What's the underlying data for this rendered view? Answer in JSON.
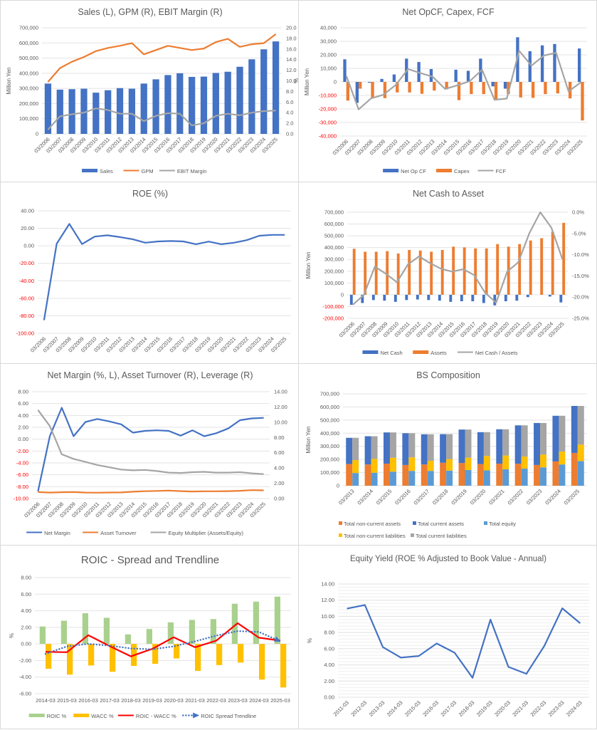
{
  "chart_data": [
    {
      "id": "sales",
      "type": "bar",
      "title": "Sales (L), GPM (R), EBIT Margin (R)",
      "ylabel": "Million Yen",
      "ylabel_right": "%",
      "ylim": [
        0,
        700000
      ],
      "ylim_right": [
        0,
        20
      ],
      "yticks": [
        0,
        100000,
        200000,
        300000,
        400000,
        500000,
        600000,
        700000
      ],
      "yticks_right": [
        0,
        2,
        4,
        6,
        8,
        10,
        12,
        14,
        16,
        18,
        20
      ],
      "categories": [
        "03/2006",
        "03/2007",
        "03/2008",
        "03/2009",
        "03/2010",
        "03/2011",
        "03/2012",
        "03/2013",
        "03/2014",
        "03/2015",
        "03/2016",
        "03/2017",
        "03/2018",
        "03/2019",
        "03/2020",
        "03/2021",
        "03/2022",
        "03/2023",
        "03/2024",
        "03/2025"
      ],
      "series": [
        {
          "name": "Sales",
          "kind": "bar",
          "axis": "left",
          "color": "#4472c4",
          "values": [
            332000,
            292000,
            295000,
            298000,
            272000,
            288000,
            302000,
            298000,
            332000,
            360000,
            388000,
            400000,
            376000,
            378000,
            402000,
            410000,
            443000,
            492000,
            558000,
            610000
          ]
        },
        {
          "name": "GPM",
          "kind": "line",
          "axis": "right",
          "color": "#ed7d31",
          "values": [
            9.8,
            12.4,
            13.6,
            14.5,
            15.6,
            16.2,
            16.6,
            17.1,
            15.0,
            15.8,
            16.6,
            16.2,
            15.8,
            16.1,
            17.3,
            17.9,
            16.4,
            16.9,
            17.1,
            18.8
          ]
        },
        {
          "name": "EBIT Margin",
          "kind": "line",
          "axis": "right",
          "color": "#a5a5a5",
          "values": [
            0.8,
            3.3,
            3.7,
            4.0,
            4.8,
            4.5,
            3.8,
            3.8,
            2.4,
            3.4,
            3.9,
            3.8,
            1.6,
            2.0,
            3.4,
            3.8,
            3.5,
            4.0,
            4.3,
            4.4
          ]
        }
      ]
    },
    {
      "id": "cashflow",
      "type": "bar",
      "title": "Net OpCF, Capex, FCF",
      "ylabel": "Million Yen",
      "ylim": [
        -40000,
        40000
      ],
      "yticks": [
        -40000,
        -30000,
        -20000,
        -10000,
        0,
        10000,
        20000,
        30000,
        40000
      ],
      "categories": [
        "03/2006",
        "03/2007",
        "03/2008",
        "03/2009",
        "03/2010",
        "03/2011",
        "03/2012",
        "03/2013",
        "03/2014",
        "03/2015",
        "03/2016",
        "03/2017",
        "03/2018",
        "03/2019",
        "03/2020",
        "03/2021",
        "03/2022",
        "03/2023",
        "03/2024",
        "03/2025"
      ],
      "series": [
        {
          "name": "Net Op CF",
          "kind": "bar",
          "color": "#4472c4",
          "values": [
            16700,
            -15500,
            -600,
            2200,
            5500,
            17200,
            14700,
            9500,
            0,
            9000,
            8200,
            17200,
            -3300,
            -5000,
            33000,
            22700,
            27000,
            28000,
            0,
            24700
          ]
        },
        {
          "name": "Capex",
          "kind": "bar",
          "color": "#ed7d31",
          "values": [
            -13800,
            -5000,
            -11800,
            -12000,
            -7800,
            -7800,
            -8800,
            -6400,
            -5500,
            -13500,
            -9000,
            -9000,
            -13200,
            -9000,
            -11500,
            -11800,
            -9000,
            -8500,
            -12200,
            -28500
          ]
        },
        {
          "name": "FCF",
          "kind": "line",
          "color": "#a5a5a5",
          "values": [
            4500,
            -20300,
            -12200,
            -9500,
            -2300,
            9500,
            6500,
            3800,
            -5200,
            -2500,
            500,
            9000,
            -13200,
            -12300,
            23000,
            12000,
            19500,
            21500,
            -7000,
            -300
          ]
        }
      ]
    },
    {
      "id": "roe",
      "type": "line",
      "title": "ROE (%)",
      "ylim": [
        -100,
        40
      ],
      "yticks": [
        -100,
        -80,
        -60,
        -40,
        -20,
        0,
        20,
        40
      ],
      "categories": [
        "03/2006",
        "03/2007",
        "03/2008",
        "03/2009",
        "03/2010",
        "03/2011",
        "03/2012",
        "03/2013",
        "03/2014",
        "03/2015",
        "03/2016",
        "03/2017",
        "03/2018",
        "03/2019",
        "03/2020",
        "03/2021",
        "03/2022",
        "03/2023",
        "03/2024",
        "03/2025"
      ],
      "series": [
        {
          "name": "ROE",
          "kind": "line",
          "color": "#4472c4",
          "values": [
            -85,
            2.5,
            25,
            2,
            10.5,
            12,
            10,
            7.5,
            3.5,
            5,
            5.5,
            5,
            1.8,
            4.8,
            1.8,
            3.5,
            6.5,
            11.5,
            12.5,
            12.5
          ]
        }
      ]
    },
    {
      "id": "netcash",
      "type": "bar",
      "title": "Net Cash to Asset",
      "ylabel": "Million Yen",
      "ylim": [
        -200000,
        700000
      ],
      "ylim_right": [
        -25,
        0
      ],
      "yticks": [
        -200000,
        -100000,
        0,
        100000,
        200000,
        300000,
        400000,
        500000,
        600000,
        700000
      ],
      "yticks_right": [
        -25,
        -20,
        -15,
        -10,
        -5,
        0
      ],
      "categories": [
        "03/2006",
        "03/2007",
        "03/2008",
        "03/2009",
        "03/2010",
        "03/2011",
        "03/2012",
        "03/2013",
        "03/2014",
        "03/2015",
        "03/2016",
        "03/2017",
        "03/2018",
        "03/2019",
        "03/2020",
        "03/2021",
        "03/2022",
        "03/2023",
        "03/2024",
        "03/2025"
      ],
      "series": [
        {
          "name": "Net Cash",
          "kind": "bar",
          "axis": "left",
          "color": "#4472c4",
          "values": [
            -85000,
            -70000,
            -45000,
            -50000,
            -60000,
            -45000,
            -40000,
            -45000,
            -50000,
            -60000,
            -55000,
            -55000,
            -70000,
            -90000,
            -55000,
            -50000,
            -20000,
            0,
            -15000,
            -65000
          ]
        },
        {
          "name": "Assets",
          "kind": "bar",
          "axis": "left",
          "color": "#ed7d31",
          "values": [
            390000,
            365000,
            365000,
            370000,
            350000,
            380000,
            375000,
            365000,
            380000,
            408000,
            402000,
            393000,
            393000,
            430000,
            408000,
            430000,
            460000,
            480000,
            535000,
            610000
          ]
        },
        {
          "name": "Net Cash / Assets",
          "kind": "line",
          "axis": "right",
          "color": "#a5a5a5",
          "values": [
            -21.8,
            -19.5,
            -12.8,
            -14.5,
            -16.5,
            -12.3,
            -10.4,
            -12.0,
            -13.3,
            -14.0,
            -13.4,
            -14.8,
            -19.0,
            -21.3,
            -14.0,
            -11.8,
            -5.0,
            0,
            -3.6,
            -11.0
          ]
        }
      ]
    },
    {
      "id": "dupont",
      "type": "line",
      "title": "Net Margin (%, L), Asset Turnover (R), Leverage (R)",
      "ylim": [
        -10,
        8
      ],
      "ylim_right": [
        0,
        14
      ],
      "yticks": [
        -10,
        -8,
        -6,
        -4,
        -2,
        0,
        2,
        4,
        6,
        8
      ],
      "yticks_right": [
        0,
        2,
        4,
        6,
        8,
        10,
        12,
        14
      ],
      "categories": [
        "03/2006",
        "03/2007",
        "03/2008",
        "03/2009",
        "03/2010",
        "03/2011",
        "03/2012",
        "03/2013",
        "03/2014",
        "03/2015",
        "03/2016",
        "03/2017",
        "03/2018",
        "03/2019",
        "03/2020",
        "03/2021",
        "03/2022",
        "03/2023",
        "03/2024",
        "03/2025"
      ],
      "series": [
        {
          "name": "Net Margin",
          "kind": "line",
          "axis": "left",
          "color": "#4472c4",
          "values": [
            -8.8,
            0.5,
            5.3,
            0.5,
            2.9,
            3.4,
            3.0,
            2.5,
            1.1,
            1.4,
            1.5,
            1.4,
            0.6,
            1.5,
            0.5,
            1.0,
            1.8,
            3.2,
            3.5,
            3.6
          ]
        },
        {
          "name": "Asset Turnover",
          "kind": "line",
          "axis": "right",
          "color": "#ed7d31",
          "values": [
            0.85,
            0.78,
            0.83,
            0.85,
            0.78,
            0.77,
            0.79,
            0.8,
            0.9,
            0.96,
            1.0,
            1.05,
            0.97,
            0.92,
            0.95,
            0.95,
            0.97,
            1.02,
            1.1,
            1.07
          ]
        },
        {
          "name": "Equity Multiplier (Assets/Equity)",
          "kind": "line",
          "axis": "right",
          "color": "#a5a5a5",
          "values": [
            11.6,
            9.5,
            5.8,
            5.2,
            4.8,
            4.4,
            4.1,
            3.8,
            3.7,
            3.75,
            3.6,
            3.4,
            3.35,
            3.45,
            3.5,
            3.4,
            3.4,
            3.45,
            3.3,
            3.2
          ]
        }
      ]
    },
    {
      "id": "bs",
      "type": "bar",
      "title": "BS Composition",
      "ylabel": "Million Yen",
      "ylim": [
        0,
        700000
      ],
      "yticks": [
        0,
        100000,
        200000,
        300000,
        400000,
        500000,
        600000,
        700000
      ],
      "categories": [
        "03/2013",
        "03/2014",
        "03/2015",
        "03/2016",
        "03/2017",
        "03/2018",
        "03/2019",
        "03/2020",
        "03/2021",
        "03/2022",
        "03/2023",
        "03/2024",
        "03/2025"
      ],
      "stacks": [
        {
          "stack": "assets",
          "series": [
            {
              "name": "Total non-current assets",
              "color": "#ed7d31",
              "values": [
                165000,
                162000,
                168000,
                158000,
                162000,
                175000,
                173000,
                165000,
                168000,
                168000,
                158000,
                185000,
                250000
              ]
            },
            {
              "name": "Total current assets",
              "color": "#4472c4",
              "values": [
                200000,
                215000,
                238000,
                242000,
                230000,
                218000,
                255000,
                243000,
                262000,
                292000,
                320000,
                348000,
                358000
              ]
            }
          ]
        },
        {
          "stack": "liabilities_equity",
          "series": [
            {
              "name": "Total equity",
              "color": "#5b9bd5",
              "values": [
                97000,
                99000,
                107000,
                113000,
                113000,
                115000,
                120000,
                117000,
                125000,
                130000,
                140000,
                162000,
                188000
              ]
            },
            {
              "name": "Total non-current liabilities",
              "color": "#ffc000",
              "values": [
                98000,
                105000,
                106000,
                103000,
                77000,
                88000,
                93000,
                110000,
                105000,
                92000,
                97000,
                98000,
                125000
              ]
            },
            {
              "name": "Total current liabilities",
              "color": "#a5a5a5",
              "values": [
                170000,
                173000,
                193000,
                184000,
                202000,
                190000,
                215000,
                181000,
                200000,
                238000,
                241000,
                273000,
                295000
              ]
            }
          ]
        }
      ],
      "legend": [
        "Total non-current assets",
        "Total current assets",
        "Total equity",
        "Total non-current liabilities",
        "Total current liabilities"
      ]
    },
    {
      "id": "roic",
      "type": "bar",
      "title": "ROIC - Spread and Trendline",
      "ylabel": "%",
      "ylim": [
        -6,
        8
      ],
      "yticks": [
        -6,
        -4,
        -2,
        0,
        2,
        4,
        6,
        8
      ],
      "categories": [
        "2014-03",
        "2015-03",
        "2016-03",
        "2017-03",
        "2018-03",
        "2019-03",
        "2020-03",
        "2021-03",
        "2022-03",
        "2023-03",
        "2024-03",
        "2025-03"
      ],
      "series": [
        {
          "name": "ROIC %",
          "kind": "bar",
          "color": "#a9d18e",
          "values": [
            2.1,
            2.8,
            3.7,
            3.15,
            1.15,
            1.8,
            2.6,
            2.9,
            3.0,
            4.85,
            5.1,
            5.7
          ]
        },
        {
          "name": "WACC %",
          "kind": "bar",
          "color": "#ffc000",
          "values": [
            -3.0,
            -3.7,
            -2.6,
            -3.35,
            -2.65,
            -2.4,
            -1.75,
            -3.25,
            -2.55,
            -2.25,
            -4.3,
            -5.25
          ]
        },
        {
          "name": "ROIC - WACC %",
          "kind": "line",
          "color": "#ff0000",
          "values": [
            -0.95,
            -1.0,
            1.05,
            -0.25,
            -1.5,
            -0.6,
            0.8,
            -0.4,
            0.4,
            2.5,
            0.75,
            0.4
          ]
        },
        {
          "name": "ROIC Spread Trendline",
          "kind": "trend",
          "color": "#4472c4",
          "values": [
            -1.2,
            -0.3,
            0.0,
            -0.2,
            -0.55,
            -0.65,
            -0.3,
            0.3,
            1.0,
            1.55,
            1.45,
            0.3
          ]
        }
      ]
    },
    {
      "id": "equityyield",
      "type": "line",
      "title": "Equity Yield (ROE % Adjusted to Book Value - Annual)",
      "ylabel": "%",
      "ylim": [
        0,
        14
      ],
      "yticks": [
        0,
        2,
        4,
        6,
        8,
        10,
        12,
        14
      ],
      "categories": [
        "2011-03",
        "2012-03",
        "2013-03",
        "2014-03",
        "2015-03",
        "2016-03",
        "2017-03",
        "2018-03",
        "2019-03",
        "2020-03",
        "2021-03",
        "2022-03",
        "2023-03",
        "2024-03"
      ],
      "series": [
        {
          "name": "Equity Yield",
          "kind": "line",
          "color": "#4472c4",
          "values": [
            10.95,
            11.4,
            6.2,
            4.9,
            5.1,
            6.65,
            5.5,
            2.4,
            9.6,
            3.75,
            2.9,
            6.35,
            11.0,
            9.15
          ]
        }
      ]
    }
  ]
}
